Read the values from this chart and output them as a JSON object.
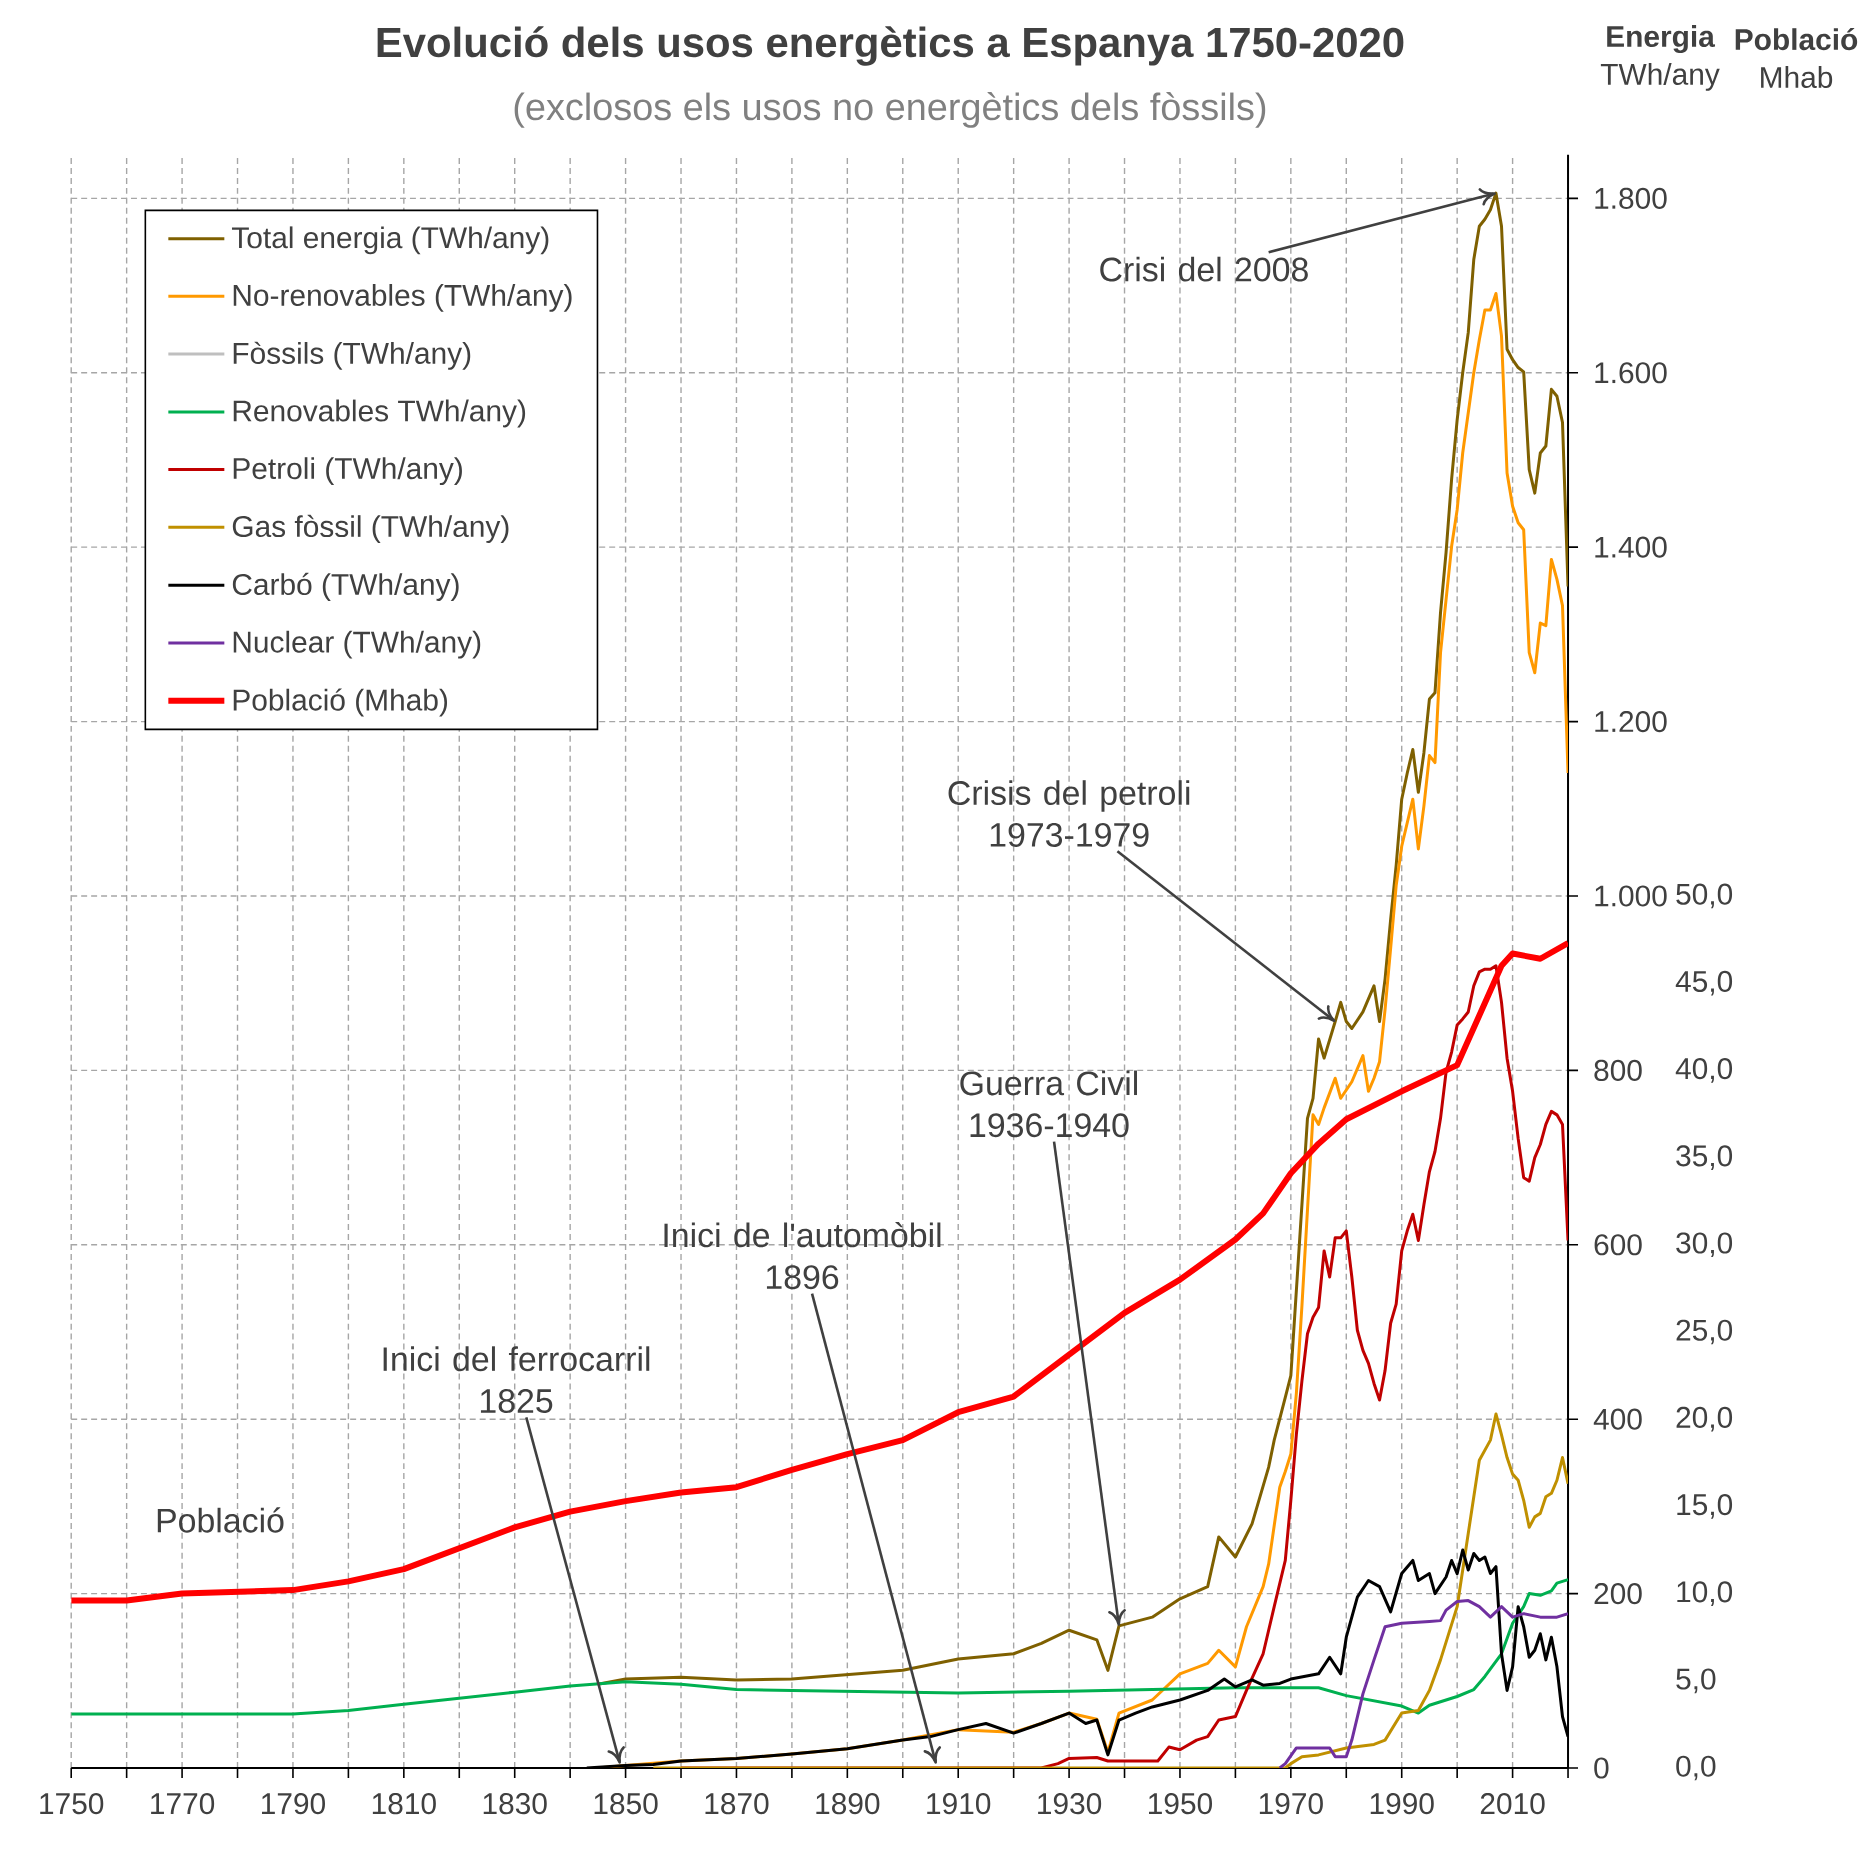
{
  "chart_data": {
    "type": "line",
    "title": "Evolució dels usos energètics a Espanya 1750-2020",
    "subtitle": "(exclosos els usos no energètics dels fòssils)",
    "ylabel": "**Energia** TWh/any",
    "y2label": "**Població** Mhab",
    "xlim": [
      1750,
      2020
    ],
    "xticks": [
      1750,
      {
        "value": 1760,
        "label": null
      },
      1770,
      {
        "value": 1780,
        "label": null
      },
      1790,
      {
        "value": 1800,
        "label": null
      },
      1810,
      {
        "value": 1820,
        "label": null
      },
      1830,
      {
        "value": 1840,
        "label": null
      },
      1850,
      {
        "value": 1860,
        "label": null
      },
      1870,
      {
        "value": 1880,
        "label": null
      },
      1890,
      {
        "value": 1900,
        "label": null
      },
      1910,
      {
        "value": 1920,
        "label": null
      },
      1930,
      {
        "value": 1940,
        "label": null
      },
      1950,
      {
        "value": 1960,
        "label": null
      },
      1970,
      {
        "value": 1980,
        "label": null
      },
      1990,
      {
        "value": 2000,
        "label": null
      },
      2010,
      {
        "value": 2020,
        "label": null
      }
    ],
    "ylim": [
      0,
      1850
    ],
    "yticks": [
      0,
      200,
      400,
      600,
      800,
      {
        "value": 1000,
        "label": "1.000"
      },
      {
        "value": 1200,
        "label": "1.200"
      },
      {
        "value": 1400,
        "label": "1.400"
      },
      {
        "value": 1600,
        "label": "1.600"
      },
      {
        "value": 1800,
        "label": "1.800"
      }
    ],
    "y2lim": [
      0,
      92.5
    ],
    "y2ticks": [
      {
        "value": 0,
        "label": "0,0"
      },
      {
        "value": 5,
        "label": "5,0"
      },
      {
        "value": 10,
        "label": "10,0"
      },
      {
        "value": 15,
        "label": "15,0"
      },
      {
        "value": 20,
        "label": "20,0"
      },
      {
        "value": 25,
        "label": "25,0"
      },
      {
        "value": 30,
        "label": "30,0"
      },
      {
        "value": 35,
        "label": "35,0"
      },
      {
        "value": 40,
        "label": "40,0"
      },
      {
        "value": 45,
        "label": "45,0"
      },
      {
        "value": 50,
        "label": "50,0"
      }
    ],
    "grid": true,
    "legend": "top left",
    "series": [
      {
        "name": "Total energia (TWh/any)",
        "color": "#7f6000",
        "x": [
          1845,
          1850,
          1860,
          1870,
          1880,
          1890,
          1900,
          1910,
          1920,
          1925,
          1930,
          1935,
          1937,
          1939,
          1945,
          1950,
          1955,
          1957,
          1960,
          1963,
          1966,
          1967,
          1969,
          1970,
          1972,
          1973,
          1974,
          1975,
          1976,
          1978,
          1979,
          1980,
          1981,
          1983,
          1985,
          1986,
          1987,
          1988,
          1989,
          1990,
          1991,
          1992,
          1993,
          1994,
          1995,
          1996,
          1997,
          1998,
          1999,
          2000,
          2001,
          2002,
          2003,
          2004,
          2005,
          2006,
          2007,
          2008,
          2009,
          2010,
          2011,
          2012,
          2013,
          2014,
          2015,
          2016,
          2017,
          2018,
          2019,
          2020
        ],
        "values": [
          96,
          102,
          104,
          101,
          102,
          107,
          112,
          125,
          131,
          143,
          158,
          147,
          112,
          163,
          173,
          194,
          208,
          265,
          242,
          280,
          345,
          376,
          425,
          450,
          646,
          745,
          768,
          836,
          814,
          856,
          878,
          856,
          848,
          867,
          897,
          856,
          905,
          973,
          1035,
          1111,
          1141,
          1168,
          1119,
          1164,
          1226,
          1233,
          1325,
          1394,
          1478,
          1546,
          1600,
          1646,
          1730,
          1768,
          1776,
          1787,
          1806,
          1768,
          1627,
          1615,
          1606,
          1601,
          1489,
          1462,
          1508,
          1516,
          1581,
          1573,
          1543,
          1355
        ]
      },
      {
        "name": "No-renovables (TWh/any)",
        "color": "#ff9900",
        "x": [
          1845,
          1850,
          1860,
          1870,
          1880,
          1890,
          1900,
          1910,
          1920,
          1925,
          1930,
          1935,
          1937,
          1939,
          1945,
          1950,
          1955,
          1957,
          1960,
          1962,
          1965,
          1966,
          1968,
          1969,
          1970,
          1971,
          1972,
          1973,
          1974,
          1975,
          1976,
          1978,
          1979,
          1981,
          1983,
          1984,
          1985,
          1986,
          1987,
          1988,
          1989,
          1990,
          1992,
          1993,
          1994,
          1995,
          1996,
          1997,
          1999,
          2000,
          2001,
          2003,
          2004,
          2005,
          2006,
          2007,
          2008,
          2009,
          2010,
          2011,
          2012,
          2013,
          2014,
          2015,
          2016,
          2017,
          2018,
          2019,
          2020
        ],
        "values": [
          0,
          3,
          8,
          11,
          16,
          22,
          32,
          44,
          41,
          51,
          63,
          56,
          18,
          63,
          78,
          108,
          120,
          135,
          116,
          162,
          208,
          234,
          322,
          340,
          360,
          430,
          530,
          640,
          749,
          738,
          757,
          791,
          768,
          787,
          817,
          776,
          791,
          810,
          870,
          940,
          1012,
          1057,
          1111,
          1054,
          1103,
          1161,
          1153,
          1279,
          1401,
          1443,
          1508,
          1600,
          1638,
          1672,
          1672,
          1691,
          1642,
          1485,
          1447,
          1428,
          1420,
          1279,
          1256,
          1313,
          1310,
          1386,
          1363,
          1333,
          1141
        ]
      },
      {
        "name": "Fòssils (TWh/any)",
        "color": "#bfbfbf"
      },
      {
        "name": "Renovables TWh/any)",
        "color": "#00b050",
        "x": [
          1750,
          1790,
          1800,
          1810,
          1820,
          1830,
          1840,
          1850,
          1860,
          1870,
          1880,
          1910,
          1930,
          1960,
          1975,
          1980,
          1990,
          1993,
          1995,
          2000,
          2003,
          2005,
          2008,
          2010,
          2012,
          2013,
          2015,
          2017,
          2018,
          2020
        ],
        "values": [
          62,
          62,
          66,
          73,
          80,
          87,
          94,
          99,
          96,
          90,
          89,
          86,
          88,
          92,
          92,
          83,
          71,
          63,
          72,
          82,
          90,
          105,
          131,
          166,
          185,
          200,
          198,
          203,
          212,
          216
        ]
      },
      {
        "name": "Petroli (TWh/any)",
        "color": "#c00000",
        "x": [
          1860,
          1925,
          1928,
          1930,
          1935,
          1937,
          1940,
          1946,
          1948,
          1950,
          1953,
          1955,
          1957,
          1960,
          1962,
          1965,
          1967,
          1969,
          1970,
          1971,
          1972,
          1973,
          1974,
          1975,
          1976,
          1977,
          1978,
          1979,
          1980,
          1981,
          1982,
          1983,
          1984,
          1985,
          1986,
          1987,
          1988,
          1989,
          1990,
          1991,
          1992,
          1993,
          1994,
          1995,
          1996,
          1997,
          1998,
          1999,
          2000,
          2001,
          2002,
          2003,
          2004,
          2005,
          2006,
          2007,
          2008,
          2009,
          2010,
          2011,
          2012,
          2013,
          2014,
          2015,
          2016,
          2017,
          2018,
          2019,
          2020
        ],
        "values": [
          0,
          0,
          5,
          11,
          12,
          8,
          8,
          8,
          24,
          21,
          32,
          36,
          55,
          59,
          89,
          131,
          185,
          238,
          307,
          383,
          444,
          498,
          517,
          528,
          593,
          563,
          608,
          608,
          616,
          563,
          502,
          479,
          464,
          441,
          422,
          456,
          510,
          532,
          593,
          616,
          635,
          605,
          646,
          684,
          707,
          745,
          798,
          821,
          852,
          859,
          867,
          897,
          913,
          916,
          916,
          920,
          878,
          814,
          776,
          722,
          677,
          673,
          700,
          715,
          738,
          753,
          749,
          738,
          605
        ]
      },
      {
        "name": "Gas fòssil (TWh/any)",
        "color": "#c09000",
        "x": [
          1855,
          1969,
          1970,
          1972,
          1975,
          1980,
          1985,
          1987,
          1990,
          1993,
          1995,
          1997,
          2000,
          2002,
          2004,
          2006,
          2007,
          2008,
          2009,
          2010,
          2011,
          2012,
          2013,
          2014,
          2015,
          2016,
          2017,
          2018,
          2019,
          2020
        ],
        "values": [
          0,
          0,
          5,
          13,
          15,
          23,
          27,
          32,
          63,
          66,
          89,
          124,
          185,
          269,
          353,
          376,
          406,
          382,
          356,
          337,
          330,
          307,
          276,
          288,
          292,
          311,
          315,
          330,
          356,
          326
        ]
      },
      {
        "name": "Carbó (TWh/any)",
        "color": "#000000",
        "x": [
          1843,
          1850,
          1855,
          1860,
          1870,
          1880,
          1890,
          1900,
          1905,
          1910,
          1915,
          1920,
          1925,
          1930,
          1933,
          1935,
          1937,
          1939,
          1942,
          1945,
          1950,
          1955,
          1958,
          1960,
          1963,
          1965,
          1968,
          1970,
          1975,
          1977,
          1979,
          1980,
          1982,
          1984,
          1986,
          1988,
          1990,
          1992,
          1993,
          1995,
          1996,
          1998,
          1999,
          2000,
          2001,
          2002,
          2003,
          2004,
          2005,
          2006,
          2007,
          2008,
          2009,
          2010,
          2011,
          2012,
          2013,
          2014,
          2015,
          2016,
          2017,
          2018,
          2019,
          2020
        ],
        "values": [
          0,
          3,
          4,
          8,
          11,
          16,
          22,
          32,
          36,
          44,
          51,
          40,
          51,
          63,
          51,
          55,
          15,
          55,
          63,
          70,
          78,
          89,
          102,
          93,
          101,
          95,
          97,
          102,
          108,
          127,
          108,
          150,
          196,
          215,
          208,
          179,
          223,
          238,
          215,
          223,
          200,
          219,
          238,
          223,
          250,
          227,
          246,
          238,
          242,
          223,
          231,
          131,
          89,
          116,
          185,
          162,
          127,
          135,
          154,
          124,
          150,
          116,
          59,
          36
        ]
      },
      {
        "name": "Nuclear (TWh/any)",
        "color": "#7030a0",
        "x": [
          1968,
          1969,
          1971,
          1977,
          1978,
          1980,
          1981,
          1983,
          1985,
          1987,
          1990,
          1995,
          1997,
          1998,
          2000,
          2002,
          2004,
          2006,
          2008,
          2010,
          2012,
          2015,
          2018,
          2020
        ],
        "values": [
          0,
          5,
          23,
          23,
          13,
          13,
          32,
          85,
          124,
          162,
          166,
          168,
          169,
          181,
          191,
          192,
          185,
          173,
          185,
          173,
          177,
          173,
          173,
          177
        ]
      },
      {
        "name": "Població (Mhab)",
        "color": "#ff0000",
        "axis": "y2",
        "x": [
          1750,
          1760,
          1770,
          1790,
          1800,
          1810,
          1820,
          1830,
          1840,
          1850,
          1860,
          1870,
          1880,
          1890,
          1900,
          1910,
          1920,
          1930,
          1940,
          1950,
          1960,
          1965,
          1970,
          1975,
          1980,
          1990,
          2000,
          2008,
          2010,
          2015,
          2020
        ],
        "values": [
          9.6,
          9.6,
          10.0,
          10.2,
          10.7,
          11.4,
          12.6,
          13.8,
          14.7,
          15.3,
          15.8,
          16.1,
          17.1,
          18.0,
          18.8,
          20.4,
          21.3,
          23.7,
          26.1,
          28.0,
          30.3,
          31.8,
          34.1,
          35.8,
          37.2,
          38.8,
          40.3,
          46.0,
          46.7,
          46.4,
          47.3
        ]
      }
    ],
    "annotations": [
      {
        "text": "Crisi del 2008",
        "x": 2007,
        "y": 1806
      },
      {
        "text": "Crisis del petroli\n1973-1979",
        "x": 1978,
        "y": 856
      },
      {
        "text": "Guerra Civil\n1936-1940",
        "x": 1939,
        "y": 163
      },
      {
        "text": "Inici de l'automòbil\n1896",
        "x": 1906,
        "y": 5
      },
      {
        "text": "Inici del ferrocarril\n1825",
        "x": 1849,
        "y": 5
      },
      "Població"
    ]
  }
}
